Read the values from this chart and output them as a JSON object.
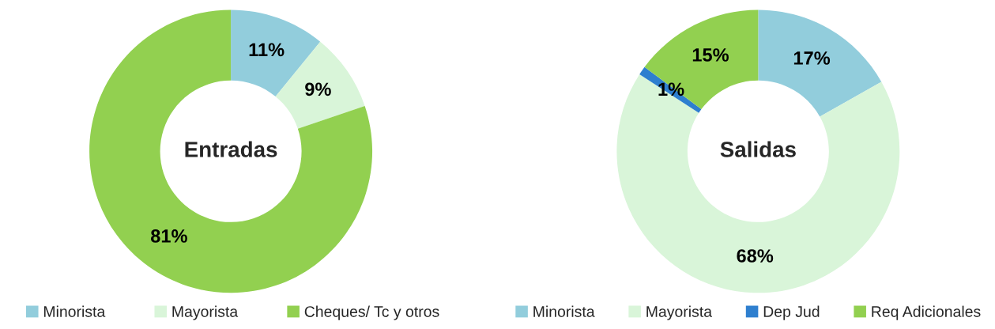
{
  "chart_data": [
    {
      "type": "donut",
      "title": "Entradas",
      "categories": [
        "Minorista",
        "Mayorista",
        "Cheques/ Tc y otros"
      ],
      "values": [
        11,
        9,
        81
      ],
      "colors": [
        "#92cddc",
        "#d9f5d9",
        "#92d050"
      ],
      "value_labels": [
        "11%",
        "9%",
        "81%"
      ],
      "legend": "bottom"
    },
    {
      "type": "donut",
      "title": "Salidas",
      "categories": [
        "Minorista",
        "Mayorista",
        "Dep Jud",
        "Req Adicionales"
      ],
      "values": [
        17,
        68,
        1,
        15
      ],
      "colors": [
        "#92cddc",
        "#d9f5d9",
        "#2e7fcf",
        "#92d050"
      ],
      "value_labels": [
        "17%",
        "68%",
        "1%",
        "15%"
      ],
      "legend": "bottom"
    }
  ]
}
